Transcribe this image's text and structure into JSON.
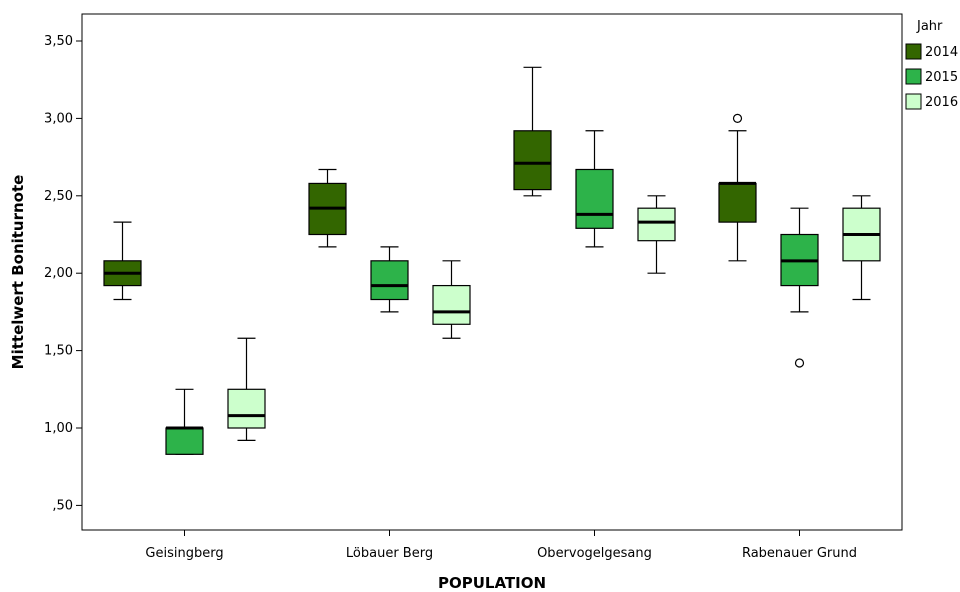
{
  "chart_data": {
    "type": "boxplot",
    "xlabel": "POPULATION",
    "ylabel": "Mittelwert Boniturnote",
    "ylim": [
      0.3,
      3.65
    ],
    "yticks": [
      {
        "value": 0.5,
        "label": ",50"
      },
      {
        "value": 1.0,
        "label": "1,00"
      },
      {
        "value": 1.5,
        "label": "1,50"
      },
      {
        "value": 2.0,
        "label": "2,00"
      },
      {
        "value": 2.5,
        "label": "2,50"
      },
      {
        "value": 3.0,
        "label": "3,00"
      },
      {
        "value": 3.5,
        "label": "3,50"
      }
    ],
    "categories": [
      "Geisingberg",
      "Löbauer Berg",
      "Obervogelgesang",
      "Rabenauer Grund"
    ],
    "legend": {
      "title": "Jahr",
      "position": "right"
    },
    "series": [
      {
        "name": "2014",
        "color": "#336600",
        "boxes": [
          {
            "min": 1.83,
            "q1": 1.92,
            "median": 2.0,
            "q3": 2.08,
            "max": 2.33,
            "outliers": []
          },
          {
            "min": 2.17,
            "q1": 2.25,
            "median": 2.42,
            "q3": 2.58,
            "max": 2.67,
            "outliers": []
          },
          {
            "min": 2.5,
            "q1": 2.54,
            "median": 2.71,
            "q3": 2.92,
            "max": 3.33,
            "outliers": []
          },
          {
            "min": 2.08,
            "q1": 2.33,
            "median": 2.58,
            "q3": 2.58,
            "max": 2.92,
            "outliers": [
              3.0
            ]
          }
        ]
      },
      {
        "name": "2015",
        "color": "#2db34a",
        "boxes": [
          {
            "min": 0.83,
            "q1": 0.83,
            "median": 1.0,
            "q3": 1.0,
            "max": 1.25,
            "outliers": []
          },
          {
            "min": 1.75,
            "q1": 1.83,
            "median": 1.92,
            "q3": 2.08,
            "max": 2.17,
            "outliers": []
          },
          {
            "min": 2.17,
            "q1": 2.29,
            "median": 2.38,
            "q3": 2.67,
            "max": 2.92,
            "outliers": []
          },
          {
            "min": 1.75,
            "q1": 1.92,
            "median": 2.08,
            "q3": 2.25,
            "max": 2.42,
            "outliers": [
              1.42
            ]
          }
        ]
      },
      {
        "name": "2016",
        "color": "#ccffcc",
        "boxes": [
          {
            "min": 0.92,
            "q1": 1.0,
            "median": 1.08,
            "q3": 1.25,
            "max": 1.58,
            "outliers": []
          },
          {
            "min": 1.58,
            "q1": 1.67,
            "median": 1.75,
            "q3": 1.92,
            "max": 2.08,
            "outliers": []
          },
          {
            "min": 2.0,
            "q1": 2.21,
            "median": 2.33,
            "q3": 2.42,
            "max": 2.5,
            "outliers": []
          },
          {
            "min": 1.83,
            "q1": 2.08,
            "median": 2.25,
            "q3": 2.42,
            "max": 2.5,
            "outliers": []
          }
        ]
      }
    ]
  }
}
